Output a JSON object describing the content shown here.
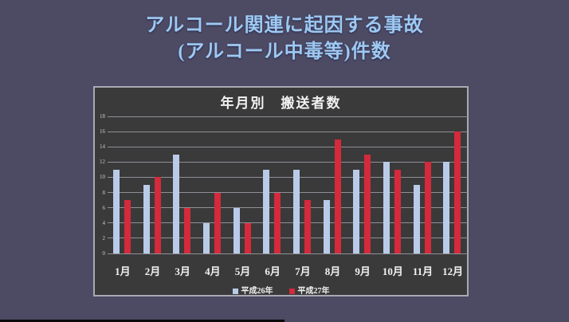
{
  "slide": {
    "title_line1": "アルコール関連に起因する事故",
    "title_line2": "(アルコール中毒等)件数",
    "title_color": "#9ec9f2",
    "background_color": "#4d4a64"
  },
  "panel": {
    "background_color": "#3a3a3a",
    "border_color": "#a9a9b4",
    "gridline_color": "#8f8f98"
  },
  "chart_data": {
    "type": "bar",
    "title": "年月別　搬送者数",
    "categories": [
      "1月",
      "2月",
      "3月",
      "4月",
      "5月",
      "6月",
      "7月",
      "8月",
      "9月",
      "10月",
      "11月",
      "12月"
    ],
    "series": [
      {
        "name": "平成26年",
        "color": "#b9cbe8",
        "values": [
          11,
          9,
          13,
          4,
          6,
          11,
          11,
          7,
          11,
          12,
          9,
          12
        ]
      },
      {
        "name": "平成27年",
        "color": "#d42a3c",
        "values": [
          7,
          10,
          6,
          8,
          4,
          8,
          7,
          15,
          13,
          11,
          12,
          16
        ]
      }
    ],
    "ylim": [
      0,
      18
    ],
    "yticks": [
      0,
      2,
      4,
      6,
      8,
      10,
      12,
      14,
      16,
      18
    ],
    "grid": true,
    "legend_position": "bottom"
  }
}
